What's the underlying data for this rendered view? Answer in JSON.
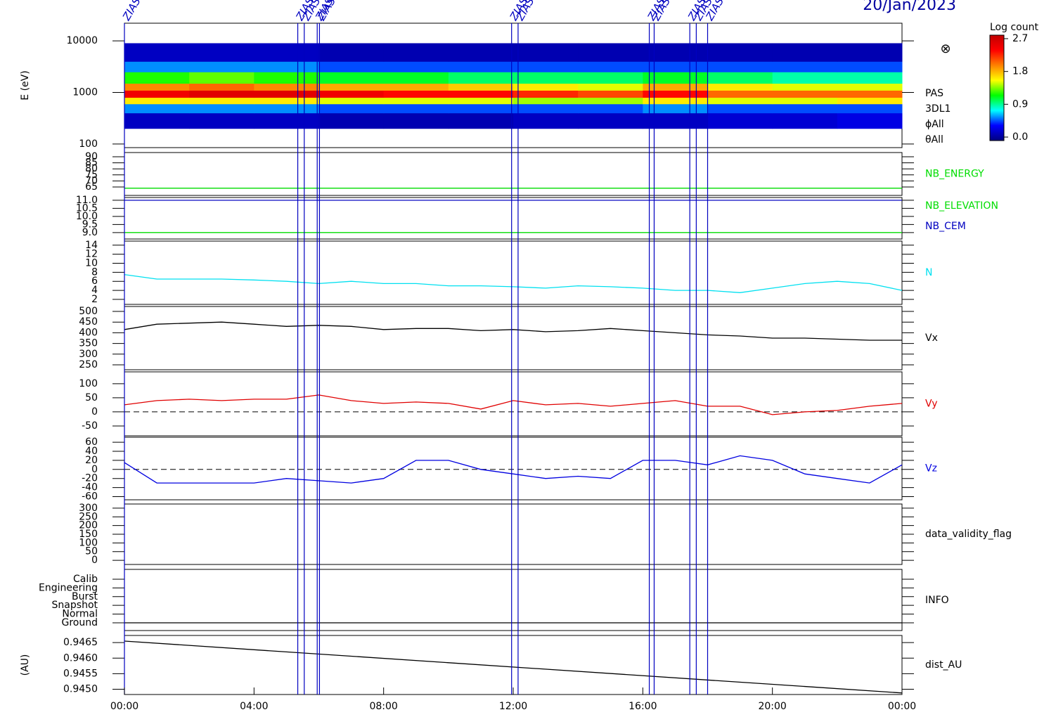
{
  "date": "20/Jan/2023",
  "events": {
    "label": "ZIAS",
    "x": [
      0.0,
      5.35,
      5.55,
      5.95,
      6.02,
      11.95,
      12.15,
      16.2,
      16.35,
      17.45,
      17.65,
      18.0
    ]
  },
  "time_axis": {
    "xlim": [
      0,
      24
    ],
    "xticks": [
      {
        "value": 0,
        "label": "00:00"
      },
      {
        "value": 4,
        "label": "04:00"
      },
      {
        "value": 8,
        "label": "08:00"
      },
      {
        "value": 12,
        "label": "12:00"
      },
      {
        "value": 16,
        "label": "16:00"
      },
      {
        "value": 20,
        "label": "20:00"
      },
      {
        "value": 24,
        "label": "00:00"
      }
    ]
  },
  "chart_data": [
    {
      "type": "heatmap",
      "ylabel": "E (eV)",
      "log": true,
      "ylim": [
        85,
        22000
      ],
      "yticks": [
        100,
        1000,
        10000
      ],
      "symbol": "⊗",
      "side_labels": [
        "PAS",
        "3DL1",
        "ϕAll",
        "θAll"
      ],
      "x_edges": [
        0,
        2,
        4,
        6,
        8,
        10,
        12,
        14,
        16,
        18,
        20,
        22,
        24
      ],
      "y_edges": [
        200,
        400,
        600,
        800,
        1100,
        1500,
        2500,
        4000,
        9000
      ],
      "z": [
        [
          0.2,
          0.2,
          0.2,
          0.15,
          0.15,
          0.15,
          0.2,
          0.2,
          0.2,
          0.25,
          0.25,
          0.3
        ],
        [
          0.6,
          0.6,
          0.6,
          0.5,
          0.5,
          0.5,
          0.5,
          0.5,
          0.6,
          0.5,
          0.5,
          0.5
        ],
        [
          1.6,
          1.6,
          1.6,
          1.5,
          1.5,
          1.5,
          1.4,
          1.4,
          1.6,
          1.5,
          1.5,
          1.6
        ],
        [
          2.4,
          2.5,
          2.5,
          2.4,
          2.3,
          2.3,
          2.2,
          2.1,
          2.3,
          2.0,
          2.0,
          2.0
        ],
        [
          1.9,
          2.0,
          1.9,
          1.8,
          1.8,
          1.7,
          1.6,
          1.5,
          1.8,
          1.6,
          1.5,
          1.5
        ],
        [
          1.2,
          1.3,
          1.2,
          1.1,
          1.1,
          1.0,
          1.0,
          1.0,
          1.1,
          1.0,
          0.9,
          0.9
        ],
        [
          0.6,
          0.6,
          0.6,
          0.5,
          0.5,
          0.5,
          0.5,
          0.5,
          0.5,
          0.5,
          0.5,
          0.5
        ],
        [
          0.2,
          0.2,
          0.2,
          0.15,
          0.15,
          0.15,
          0.15,
          0.15,
          0.15,
          0.15,
          0.15,
          0.15
        ]
      ],
      "colormap": [
        "#000080",
        "#0000ff",
        "#00ffff",
        "#00ff00",
        "#ffff00",
        "#ff8000",
        "#ff0000",
        "#c00000"
      ],
      "colorbar": {
        "label": "Log count",
        "lim": [
          0,
          2.7
        ],
        "ticks": [
          {
            "value": 0,
            "label": "0.0"
          },
          {
            "value": 0.9,
            "label": "0.9"
          },
          {
            "value": 1.8,
            "label": "1.8"
          },
          {
            "value": 2.7,
            "label": "2.7"
          }
        ]
      }
    },
    {
      "type": "line",
      "ylim": [
        58,
        93.5
      ],
      "yticks": [
        65,
        70,
        75,
        80,
        85,
        90
      ],
      "x": [
        0,
        24
      ],
      "series": [
        {
          "name": "NB_ENERGY",
          "color": "#00dd00",
          "values": [
            64,
            64
          ]
        }
      ]
    },
    {
      "type": "line",
      "ylim": [
        8.6,
        11.17
      ],
      "yticks": [
        {
          "value": 9,
          "label": "9.0"
        },
        {
          "value": 9.5,
          "label": "9.5"
        },
        {
          "value": 10,
          "label": "10.0"
        },
        {
          "value": 10.5,
          "label": "10.5"
        },
        {
          "value": 11,
          "label": "11.0"
        }
      ],
      "x": [
        0,
        24
      ],
      "series": [
        {
          "name": "NB_ELEVATION",
          "color": "#00dd00",
          "values": [
            9,
            9
          ]
        },
        {
          "name": "NB_CEM",
          "color": "#0000c0",
          "values": [
            11,
            11
          ]
        }
      ]
    },
    {
      "type": "line",
      "ylim": [
        0.9,
        14.9
      ],
      "yticks": [
        2,
        4,
        6,
        8,
        10,
        12,
        14
      ],
      "x": [
        0,
        1,
        2,
        3,
        4,
        5,
        6,
        7,
        8,
        9,
        10,
        11,
        12,
        13,
        14,
        15,
        16,
        17,
        18,
        19,
        20,
        21,
        22,
        23,
        24
      ],
      "series": [
        {
          "name": "N",
          "color": "#00e0f0",
          "values": [
            7.5,
            6.5,
            6.5,
            6.5,
            6.3,
            6,
            5.5,
            6,
            5.5,
            5.5,
            5,
            5,
            4.8,
            4.5,
            5,
            4.8,
            4.5,
            4,
            4,
            3.5,
            4.5,
            5.5,
            6,
            5.5,
            4
          ]
        }
      ]
    },
    {
      "type": "line",
      "ylim": [
        227,
        523
      ],
      "yticks": [
        250,
        300,
        350,
        400,
        450,
        500
      ],
      "x": [
        0,
        1,
        2,
        3,
        4,
        5,
        6,
        7,
        8,
        9,
        10,
        11,
        12,
        13,
        14,
        15,
        16,
        17,
        18,
        19,
        20,
        21,
        22,
        23,
        24
      ],
      "series": [
        {
          "name": "Vx",
          "color": "#000000",
          "values": [
            415,
            440,
            445,
            450,
            440,
            430,
            435,
            430,
            415,
            420,
            420,
            410,
            415,
            405,
            410,
            420,
            410,
            400,
            390,
            385,
            375,
            375,
            370,
            365,
            365
          ]
        }
      ]
    },
    {
      "type": "line",
      "ylim": [
        -85,
        142
      ],
      "yticks": [
        -50,
        0,
        50,
        100
      ],
      "zero_line": true,
      "x": [
        0,
        1,
        2,
        3,
        4,
        5,
        6,
        7,
        8,
        9,
        10,
        11,
        12,
        13,
        14,
        15,
        16,
        17,
        18,
        19,
        20,
        21,
        22,
        23,
        24
      ],
      "series": [
        {
          "name": "Vy",
          "color": "#e00000",
          "values": [
            25,
            40,
            45,
            40,
            45,
            45,
            60,
            40,
            30,
            35,
            30,
            10,
            40,
            25,
            30,
            20,
            30,
            40,
            20,
            20,
            -10,
            0,
            5,
            20,
            30
          ]
        }
      ]
    },
    {
      "type": "line",
      "ylim": [
        -67,
        71
      ],
      "yticks": [
        -60,
        -40,
        -20,
        0,
        20,
        40,
        60
      ],
      "zero_line": true,
      "x": [
        0,
        1,
        2,
        3,
        4,
        5,
        6,
        7,
        8,
        9,
        10,
        11,
        12,
        13,
        14,
        15,
        16,
        17,
        18,
        19,
        20,
        21,
        22,
        23,
        24
      ],
      "series": [
        {
          "name": "Vz",
          "color": "#0000e0",
          "values": [
            15,
            -30,
            -30,
            -30,
            -30,
            -20,
            -25,
            -30,
            -20,
            20,
            20,
            0,
            -10,
            -20,
            -15,
            -20,
            20,
            20,
            10,
            30,
            20,
            -10,
            -20,
            -30,
            10
          ]
        }
      ]
    },
    {
      "type": "line",
      "ylim": [
        -24,
        324
      ],
      "yticks": [
        0,
        50,
        100,
        150,
        200,
        250,
        300
      ],
      "side_labels": [
        "data_validity_flag"
      ],
      "x": [],
      "series": []
    },
    {
      "type": "line",
      "ylim": [
        -0.89,
        6.13
      ],
      "yticks": [
        {
          "value": 5,
          "label": "Calib"
        },
        {
          "value": 4,
          "label": "Engineering"
        },
        {
          "value": 3,
          "label": "Burst"
        },
        {
          "value": 2,
          "label": "Snapshot"
        },
        {
          "value": 1,
          "label": "Normal"
        },
        {
          "value": 0,
          "label": "Ground"
        }
      ],
      "side_labels": [
        "INFO"
      ],
      "x": [
        0,
        24
      ],
      "series": [
        {
          "color": "#000000",
          "values": [
            0,
            0
          ]
        }
      ]
    },
    {
      "type": "line",
      "ylabel": "(AU)",
      "ylim": [
        0.94483,
        0.94673
      ],
      "yticks": [
        {
          "value": 0.945,
          "label": "0.9450"
        },
        {
          "value": 0.9455,
          "label": "0.9455"
        },
        {
          "value": 0.946,
          "label": "0.9460"
        },
        {
          "value": 0.9465,
          "label": "0.9465"
        }
      ],
      "x": [
        0,
        24
      ],
      "series": [
        {
          "name": "dist_AU",
          "color": "#000000",
          "values": [
            0.94655,
            0.94488
          ]
        }
      ]
    }
  ]
}
